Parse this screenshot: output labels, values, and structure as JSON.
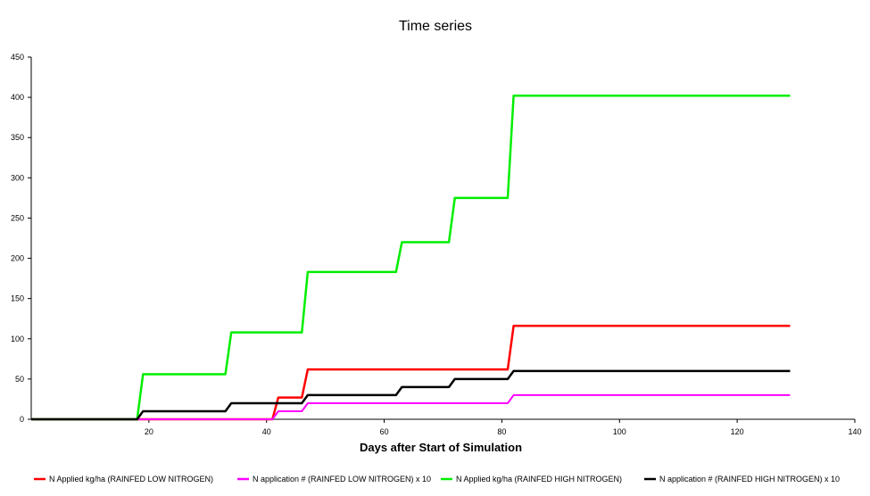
{
  "chart_data": {
    "type": "line",
    "title": "Time series",
    "xlabel": "Days after Start of Simulation",
    "ylabel": "",
    "xlim": [
      0,
      140
    ],
    "ylim": [
      0,
      450
    ],
    "x_ticks": [
      20,
      40,
      60,
      80,
      100,
      120,
      140
    ],
    "y_ticks": [
      0,
      50,
      100,
      150,
      200,
      250,
      300,
      350,
      400,
      450
    ],
    "grid": false,
    "legend_position": "bottom",
    "series": [
      {
        "name": "N Applied kg/ha (RAINFED LOW NITROGEN)",
        "color": "#ff0000",
        "points": [
          [
            0,
            0
          ],
          [
            41,
            0
          ],
          [
            42,
            27
          ],
          [
            46,
            27
          ],
          [
            47,
            62
          ],
          [
            81,
            62
          ],
          [
            82,
            116
          ],
          [
            129,
            116
          ]
        ]
      },
      {
        "name": "N application # (RAINFED LOW NITROGEN) x 10",
        "color": "#ff00ff",
        "points": [
          [
            0,
            0
          ],
          [
            41,
            0
          ],
          [
            42,
            10
          ],
          [
            46,
            10
          ],
          [
            47,
            20
          ],
          [
            81,
            20
          ],
          [
            82,
            30
          ],
          [
            129,
            30
          ]
        ]
      },
      {
        "name": "N Applied kg/ha (RAINFED HIGH NITROGEN)",
        "color": "#00ee00",
        "points": [
          [
            0,
            0
          ],
          [
            18,
            0
          ],
          [
            19,
            56
          ],
          [
            33,
            56
          ],
          [
            34,
            108
          ],
          [
            46,
            108
          ],
          [
            47,
            183
          ],
          [
            62,
            183
          ],
          [
            63,
            220
          ],
          [
            71,
            220
          ],
          [
            72,
            275
          ],
          [
            81,
            275
          ],
          [
            82,
            402
          ],
          [
            129,
            402
          ]
        ]
      },
      {
        "name": "N application # (RAINFED HIGH NITROGEN) x 10",
        "color": "#000000",
        "points": [
          [
            0,
            0
          ],
          [
            18,
            0
          ],
          [
            19,
            10
          ],
          [
            33,
            10
          ],
          [
            34,
            20
          ],
          [
            46,
            20
          ],
          [
            47,
            30
          ],
          [
            62,
            30
          ],
          [
            63,
            40
          ],
          [
            71,
            40
          ],
          [
            72,
            50
          ],
          [
            81,
            50
          ],
          [
            82,
            60
          ],
          [
            129,
            60
          ]
        ]
      }
    ]
  }
}
